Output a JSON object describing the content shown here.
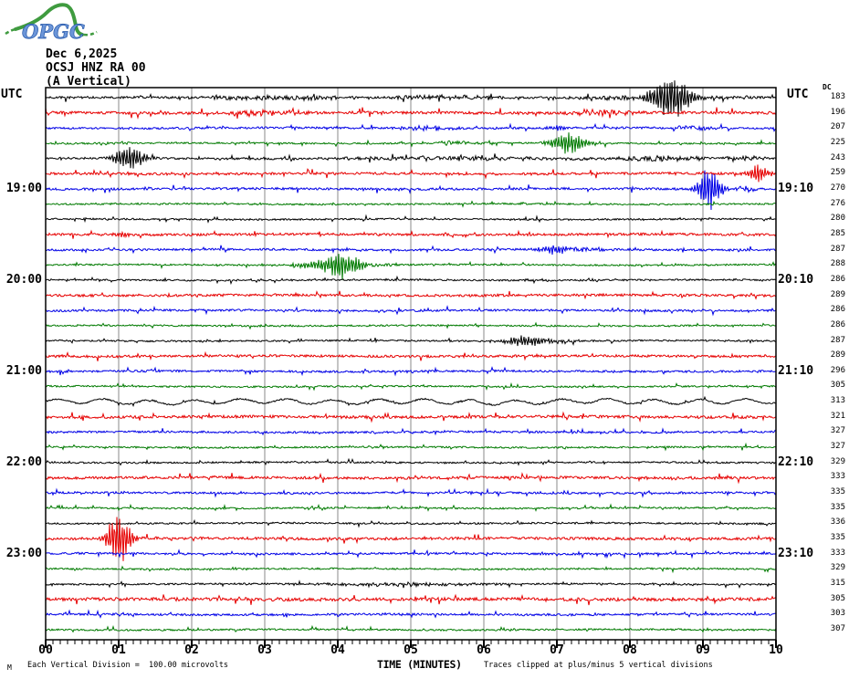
{
  "header": {
    "logo_text": "OPGC",
    "date": "Dec 6,2025",
    "station": "OCSJ HNZ RA 00",
    "component": "(A Vertical)"
  },
  "labels": {
    "utc_left": "UTC",
    "utc_right": "UTC",
    "dc_header": "DC"
  },
  "footer": {
    "scale_note": "Each Vertical Division =  100.00 microvolts",
    "time_axis_label": "TIME (MINUTES)",
    "clip_note": "Traces clipped at plus/minus 5 vertical divisions",
    "corner_glyph": "M"
  },
  "chart_data": {
    "type": "line",
    "variant": "helicorder-seismogram",
    "title": "OCSJ HNZ RA 00",
    "date": "Dec 6,2025",
    "component": "(A Vertical)",
    "xlabel": "TIME (MINUTES)",
    "x_range": [
      0,
      10
    ],
    "x_tick_labels": [
      "00",
      "01",
      "02",
      "03",
      "04",
      "05",
      "06",
      "07",
      "08",
      "09",
      "10"
    ],
    "minutes_per_row": 10,
    "rows_total": 36,
    "grid": "vertical-every-minute",
    "row_color_cycle": [
      "#000000",
      "#e60000",
      "#0000e6",
      "#007a00"
    ],
    "utc_hour_labels": [
      {
        "row": 6,
        "left": "19:00",
        "right": "19:10"
      },
      {
        "row": 12,
        "left": "20:00",
        "right": "20:10"
      },
      {
        "row": 18,
        "left": "21:00",
        "right": "21:10"
      },
      {
        "row": 24,
        "left": "22:00",
        "right": "22:10"
      },
      {
        "row": 30,
        "left": "23:00",
        "right": "23:10"
      }
    ],
    "scale_note": "Each Vertical Division =  100.00 microvolts",
    "clip_note": "Traces clipped at plus/minus 5 vertical divisions",
    "rows": [
      {
        "dc": 183,
        "noise": 1.2,
        "events": [
          {
            "t": 8.56,
            "amp": 26,
            "dur": 0.35
          },
          {
            "t": 3.2,
            "amp": 2.5,
            "dur": 1.2,
            "kind": "rumble"
          },
          {
            "t": 5.3,
            "amp": 2,
            "dur": 1.0,
            "kind": "rumble"
          },
          {
            "t": 7.7,
            "amp": 2.5,
            "dur": 0.5,
            "kind": "rumble"
          },
          {
            "t": 9.3,
            "amp": 2,
            "dur": 0.4,
            "kind": "rumble"
          }
        ]
      },
      {
        "dc": 196,
        "noise": 1.5,
        "events": [
          {
            "t": 2.8,
            "amp": 3,
            "dur": 0.5,
            "kind": "rumble"
          },
          {
            "t": 3.4,
            "amp": 2.5,
            "dur": 0.3,
            "kind": "rumble"
          },
          {
            "t": 7.6,
            "amp": 3.5,
            "dur": 0.5,
            "kind": "rumble"
          }
        ]
      },
      {
        "dc": 207,
        "noise": 1.1,
        "events": [
          {
            "t": 7.0,
            "amp": 3,
            "dur": 0.2
          },
          {
            "t": 5.2,
            "amp": 2,
            "dur": 0.5,
            "kind": "rumble"
          },
          {
            "t": 8.9,
            "amp": 2,
            "dur": 0.4,
            "kind": "rumble"
          }
        ]
      },
      {
        "dc": 225,
        "noise": 0.9,
        "events": [
          {
            "t": 7.16,
            "amp": 13,
            "dur": 0.3
          },
          {
            "t": 5.6,
            "amp": 2,
            "dur": 0.5,
            "kind": "rumble"
          },
          {
            "t": 0.9,
            "amp": 1.5,
            "dur": 0.4,
            "kind": "rumble"
          }
        ]
      },
      {
        "dc": 243,
        "noise": 1.1,
        "events": [
          {
            "t": 1.15,
            "amp": 15,
            "dur": 0.25
          },
          {
            "t": 5.6,
            "amp": 2.2,
            "dur": 2.0,
            "kind": "rumble"
          },
          {
            "t": 8.4,
            "amp": 3,
            "dur": 0.7,
            "kind": "rumble"
          },
          {
            "t": 9.6,
            "amp": 2.5,
            "dur": 0.3,
            "kind": "rumble"
          }
        ]
      },
      {
        "dc": 259,
        "noise": 1.3,
        "events": [
          {
            "t": 9.75,
            "amp": 11,
            "dur": 0.18
          }
        ]
      },
      {
        "dc": 270,
        "noise": 1.2,
        "events": [
          {
            "t": 9.08,
            "amp": 25,
            "dur": 0.2
          },
          {
            "t": 9.55,
            "amp": 3,
            "dur": 0.2,
            "kind": "rumble"
          }
        ]
      },
      {
        "dc": 276,
        "noise": 0.9,
        "events": []
      },
      {
        "dc": 280,
        "noise": 0.9,
        "events": []
      },
      {
        "dc": 285,
        "noise": 1.3,
        "events": [
          {
            "t": 1.05,
            "amp": 5,
            "dur": 0.1
          }
        ]
      },
      {
        "dc": 287,
        "noise": 1.1,
        "events": [
          {
            "t": 6.95,
            "amp": 6,
            "dur": 0.25
          },
          {
            "t": 7.4,
            "amp": 2.5,
            "dur": 0.4,
            "kind": "rumble"
          }
        ]
      },
      {
        "dc": 288,
        "noise": 0.9,
        "events": [
          {
            "t": 4.05,
            "amp": 16,
            "dur": 0.35
          },
          {
            "t": 3.6,
            "amp": 4,
            "dur": 0.25
          },
          {
            "t": 4.6,
            "amp": 2,
            "dur": 0.4,
            "kind": "rumble"
          }
        ]
      },
      {
        "dc": 286,
        "noise": 0.9,
        "events": []
      },
      {
        "dc": 289,
        "noise": 1.3,
        "events": []
      },
      {
        "dc": 286,
        "noise": 1.1,
        "events": []
      },
      {
        "dc": 286,
        "noise": 0.9,
        "events": []
      },
      {
        "dc": 287,
        "noise": 0.9,
        "events": [
          {
            "t": 6.6,
            "amp": 6,
            "dur": 0.45
          },
          {
            "t": 7.1,
            "amp": 2,
            "dur": 0.3,
            "kind": "rumble"
          }
        ]
      },
      {
        "dc": 289,
        "noise": 1.3,
        "events": []
      },
      {
        "dc": 296,
        "noise": 1.1,
        "events": []
      },
      {
        "dc": 305,
        "noise": 0.9,
        "events": []
      },
      {
        "dc": 313,
        "noise": 0.8,
        "wave": true,
        "events": []
      },
      {
        "dc": 321,
        "noise": 1.5,
        "events": []
      },
      {
        "dc": 327,
        "noise": 1.1,
        "events": []
      },
      {
        "dc": 327,
        "noise": 0.9,
        "events": []
      },
      {
        "dc": 329,
        "noise": 0.9,
        "events": []
      },
      {
        "dc": 333,
        "noise": 1.4,
        "events": []
      },
      {
        "dc": 335,
        "noise": 1.1,
        "events": []
      },
      {
        "dc": 335,
        "noise": 0.9,
        "events": []
      },
      {
        "dc": 336,
        "noise": 0.9,
        "events": []
      },
      {
        "dc": 335,
        "noise": 1.4,
        "events": [
          {
            "t": 1.02,
            "amp": 28,
            "dur": 0.2
          },
          {
            "t": 0.88,
            "amp": 5,
            "dur": 0.12
          }
        ]
      },
      {
        "dc": 333,
        "noise": 1.1,
        "events": []
      },
      {
        "dc": 329,
        "noise": 0.9,
        "events": []
      },
      {
        "dc": 315,
        "noise": 0.9,
        "events": [
          {
            "t": 5.0,
            "amp": 1.8,
            "dur": 1.5,
            "kind": "rumble"
          }
        ]
      },
      {
        "dc": 305,
        "noise": 1.7,
        "events": []
      },
      {
        "dc": 303,
        "noise": 1.1,
        "events": []
      },
      {
        "dc": 307,
        "noise": 0.9,
        "events": []
      }
    ]
  }
}
